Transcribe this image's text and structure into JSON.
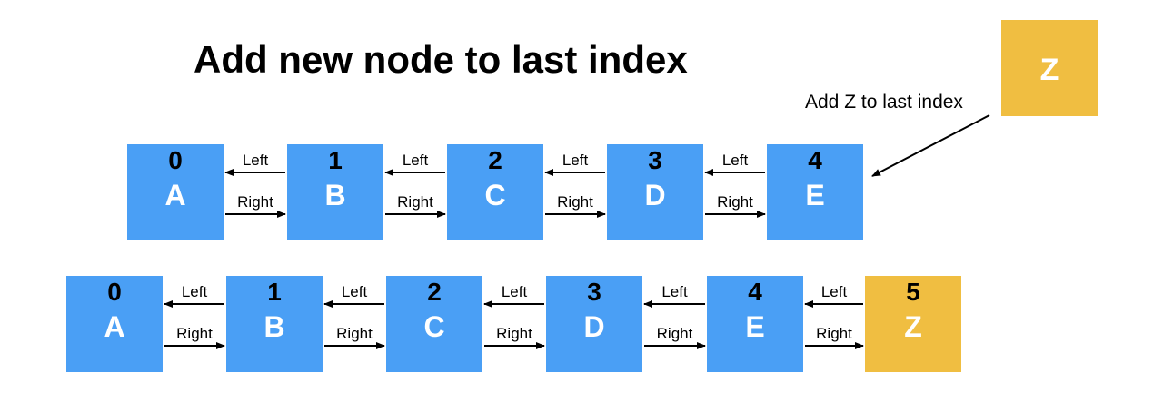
{
  "title": "Add new node to last index",
  "colors": {
    "node": "#4a9ff5",
    "new_node": "#f0be41",
    "text_light": "#ffffff",
    "text_dark": "#000000"
  },
  "new_node": {
    "label": "Z"
  },
  "annotation": "Add Z to last index",
  "link_labels": {
    "left": "Left",
    "right": "Right"
  },
  "before_list": [
    {
      "index": "0",
      "label": "A"
    },
    {
      "index": "1",
      "label": "B"
    },
    {
      "index": "2",
      "label": "C"
    },
    {
      "index": "3",
      "label": "D"
    },
    {
      "index": "4",
      "label": "E"
    }
  ],
  "after_list": [
    {
      "index": "0",
      "label": "A"
    },
    {
      "index": "1",
      "label": "B"
    },
    {
      "index": "2",
      "label": "C"
    },
    {
      "index": "3",
      "label": "D"
    },
    {
      "index": "4",
      "label": "E"
    },
    {
      "index": "5",
      "label": "Z",
      "highlight": true
    }
  ]
}
